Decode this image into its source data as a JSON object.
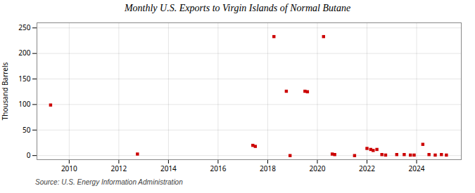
{
  "chart_data": {
    "type": "scatter",
    "title": "Monthly U.S. Exports to Virgin Islands of Normal Butane",
    "ylabel": "Thousand Barrels",
    "annotations": [
      "Source: U.S. Energy Information Administration"
    ],
    "color": "#cc0000",
    "marker": "square",
    "grid": true,
    "xlim": [
      2008.7,
      2025.8
    ],
    "ylim": [
      -8,
      260
    ],
    "xticks": [
      2010,
      2012,
      2014,
      2016,
      2018,
      2020,
      2022,
      2024
    ],
    "yticks": [
      0,
      50,
      100,
      150,
      200,
      250
    ],
    "x": [
      2009.25,
      2012.75,
      2017.4,
      2017.5,
      2018.25,
      2018.75,
      2018.9,
      2019.5,
      2019.6,
      2020.25,
      2020.6,
      2020.7,
      2021.5,
      2022.0,
      2022.15,
      2022.25,
      2022.4,
      2022.6,
      2022.75,
      2023.2,
      2023.5,
      2023.75,
      2023.9,
      2024.25,
      2024.5,
      2024.75,
      2025.0,
      2025.2
    ],
    "values": [
      99,
      3,
      20,
      18,
      233,
      126,
      0,
      126,
      125,
      233,
      3,
      2,
      0,
      14,
      12,
      10,
      12,
      2,
      1,
      2,
      2,
      1,
      1,
      22,
      2,
      1,
      2,
      1
    ]
  }
}
